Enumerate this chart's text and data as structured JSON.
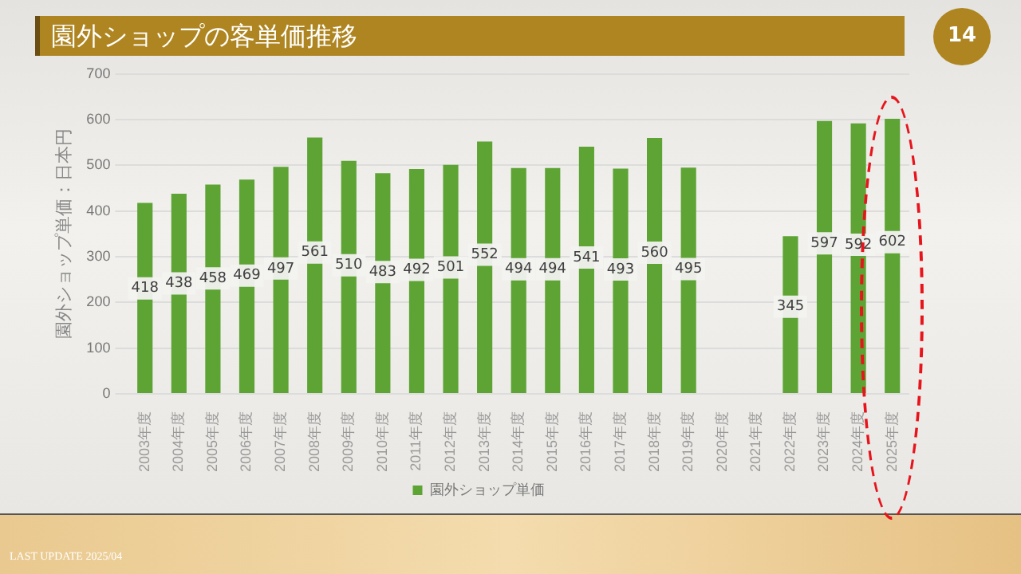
{
  "chart_data": {
    "type": "bar",
    "title": "園外ショップの客単価推移",
    "ylabel": "園外ショップ単価：日本円",
    "categories": [
      "2003年度",
      "2004年度",
      "2005年度",
      "2006年度",
      "2007年度",
      "2008年度",
      "2009年度",
      "2010年度",
      "2011年度",
      "2012年度",
      "2013年度",
      "2014年度",
      "2015年度",
      "2016年度",
      "2017年度",
      "2018年度",
      "2019年度",
      "2020年度",
      "2021年度",
      "2022年度",
      "2023年度",
      "2024年度",
      "2025年度"
    ],
    "series": [
      {
        "name": "園外ショップ単価",
        "color": "#5ea434",
        "values": [
          418,
          438,
          458,
          469,
          497,
          561,
          510,
          483,
          492,
          501,
          552,
          494,
          494,
          541,
          493,
          560,
          495,
          null,
          null,
          345,
          597,
          592,
          602
        ]
      }
    ],
    "ylim": [
      0,
      700
    ],
    "yticks": [
      0,
      100,
      200,
      300,
      400,
      500,
      600,
      700
    ],
    "grid": "y",
    "legend": "bottom",
    "data_labels": true,
    "annotations": [
      "14",
      "LAST UPDATE 2025/04"
    ]
  }
}
